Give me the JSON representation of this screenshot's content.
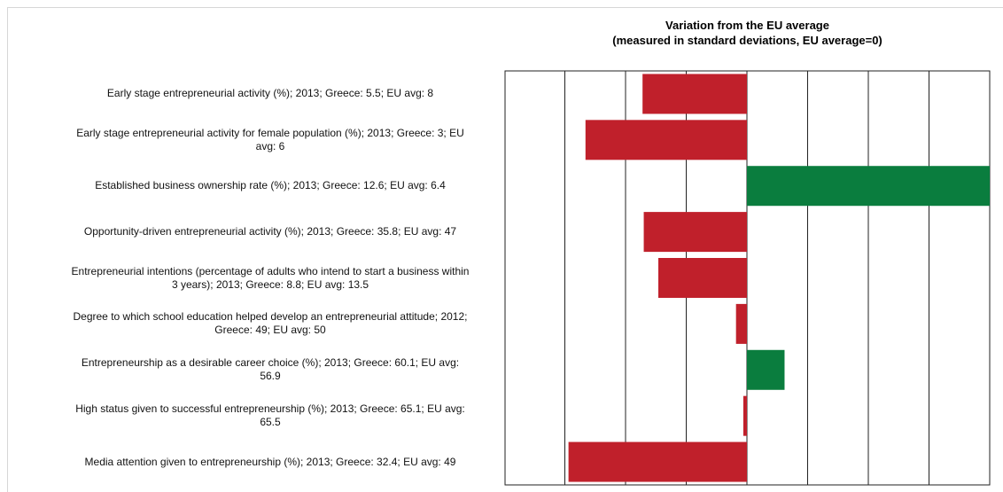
{
  "chart_data": {
    "type": "bar",
    "orientation": "horizontal",
    "title": "Variation from the EU average",
    "subtitle": "(measured in standard deviations, EU average=0)",
    "xlim": [
      -2.0,
      2.0
    ],
    "grid": true,
    "legend": "none",
    "categories": [
      "Early stage entrepreneurial activity (%); 2013; Greece: 5.5; EU avg: 8",
      "Early stage entrepreneurial activity for female population (%); 2013; Greece: 3; EU avg: 6",
      "Established business ownership rate (%); 2013; Greece: 12.6; EU avg: 6.4",
      "Opportunity-driven entrepreneurial activity (%); 2013; Greece: 35.8; EU avg: 47",
      "Entrepreneurial intentions (percentage of adults who intend to start a business within 3 years); 2013; Greece: 8.8; EU avg: 13.5",
      "Degree to which school education helped develop an entrepreneurial attitude; 2012; Greece: 49; EU avg: 50",
      "Entrepreneurship as a desirable career choice (%); 2013; Greece: 60.1; EU avg: 56.9",
      "High status given to successful entrepreneurship (%); 2013; Greece: 65.1; EU avg: 65.5",
      "Media attention given to entrepreneurship (%); 2013; Greece: 32.4; EU avg: 49"
    ],
    "label_lines": [
      [
        "Early stage entrepreneurial activity (%); 2013; Greece: 5.5; EU avg: 8"
      ],
      [
        "Early stage entrepreneurial activity for female population (%); 2013; Greece: 3; EU",
        "avg: 6"
      ],
      [
        "Established business ownership rate (%); 2013; Greece: 12.6; EU avg: 6.4"
      ],
      [
        "Opportunity-driven entrepreneurial activity (%); 2013; Greece: 35.8; EU avg: 47"
      ],
      [
        "Entrepreneurial intentions (percentage of adults who intend to start a business within",
        "3 years); 2013; Greece: 8.8; EU avg: 13.5"
      ],
      [
        "Degree to which school education helped develop an entrepreneurial attitude; 2012;",
        "Greece: 49; EU avg: 50"
      ],
      [
        "Entrepreneurship as a desirable career choice (%); 2013; Greece: 60.1; EU avg:",
        "56.9"
      ],
      [
        "High status given to successful entrepreneurship (%); 2013; Greece: 65.1; EU avg:",
        "65.5"
      ],
      [
        "Media attention given to entrepreneurship (%); 2013; Greece: 32.4; EU avg: 49"
      ]
    ],
    "values": [
      -0.86,
      -1.33,
      2.05,
      -0.85,
      -0.73,
      -0.09,
      0.31,
      -0.03,
      -1.47
    ],
    "colors": {
      "negative": "#c0202b",
      "positive": "#0a7d3e",
      "grid": "#222222"
    }
  }
}
